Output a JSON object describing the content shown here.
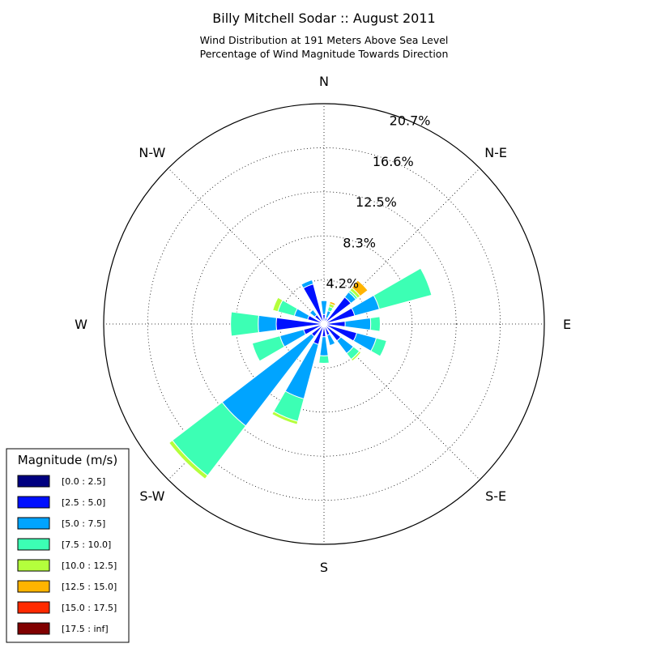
{
  "chart_data": {
    "type": "windrose",
    "title": "Billy Mitchell Sodar :: August 2011",
    "subtitle_lines": [
      "Wind Distribution at 191 Meters Above Sea Level",
      "Percentage of Wind Magnitude Towards Direction"
    ],
    "direction_labels": [
      "N",
      "N-E",
      "E",
      "S-E",
      "S",
      "S-W",
      "W",
      "N-W"
    ],
    "ring_labels": [
      "4.2%",
      "8.3%",
      "12.5%",
      "16.6%",
      "20.7%"
    ],
    "ring_values": [
      4.15,
      8.3,
      12.45,
      16.6,
      20.75
    ],
    "grid": true,
    "legend": {
      "title": "Magnitude (m/s)",
      "placement": "bottom-left",
      "bins": [
        {
          "label": "[0.0 : 2.5]",
          "color": "#000080"
        },
        {
          "label": "[2.5 : 5.0]",
          "color": "#0010ff"
        },
        {
          "label": "[5.0 : 7.5]",
          "color": "#00a4ff"
        },
        {
          "label": "[7.5 : 10.0]",
          "color": "#3cffb4"
        },
        {
          "label": "[10.0 : 12.5]",
          "color": "#b4ff3c"
        },
        {
          "label": "[12.5 : 15.0]",
          "color": "#ffb400"
        },
        {
          "label": "[15.0 : 17.5]",
          "color": "#ff2a00"
        },
        {
          "label": "[17.5 : inf]",
          "color": "#800000"
        }
      ]
    },
    "directions_deg": [
      0,
      22.5,
      45,
      67.5,
      90,
      112.5,
      135,
      157.5,
      180,
      202.5,
      225,
      247.5,
      270,
      292.5,
      315,
      337.5
    ],
    "sectors": [
      {
        "dir": 0,
        "cumulative": [
          0.1,
          0.9,
          2.2
        ]
      },
      {
        "dir": 22.5,
        "cumulative": [
          0.1,
          0.6,
          1.3,
          1.7,
          2.0,
          2.2
        ]
      },
      {
        "dir": 45,
        "cumulative": [
          0.1,
          3.2,
          3.8,
          4.0,
          4.3,
          5.2
        ]
      },
      {
        "dir": 67.5,
        "cumulative": [
          0.1,
          3.0,
          5.4,
          10.5
        ]
      },
      {
        "dir": 90,
        "cumulative": [
          0.2,
          2.0,
          4.4,
          5.3
        ]
      },
      {
        "dir": 112.5,
        "cumulative": [
          0.2,
          3.2,
          5.1,
          6.1
        ]
      },
      {
        "dir": 135,
        "cumulative": [
          0.1,
          2.0,
          3.5,
          4.2,
          4.4
        ]
      },
      {
        "dir": 157.5,
        "cumulative": [
          0.1,
          1.1,
          2.1
        ]
      },
      {
        "dir": 180,
        "cumulative": [
          0.1,
          1.2,
          3.0,
          3.7
        ]
      },
      {
        "dir": 202.5,
        "cumulative": [
          0.3,
          2.0,
          7.3,
          9.5,
          9.8
        ]
      },
      {
        "dir": 225,
        "cumulative": [
          0.3,
          1.5,
          12.1,
          18.0,
          18.4
        ]
      },
      {
        "dir": 247.5,
        "cumulative": [
          0.3,
          2.0,
          4.3,
          7.0
        ]
      },
      {
        "dir": 270,
        "cumulative": [
          0.3,
          4.5,
          6.2,
          8.8
        ]
      },
      {
        "dir": 292.5,
        "cumulative": [
          0.2,
          1.6,
          2.9,
          4.5,
          5.0
        ]
      },
      {
        "dir": 315,
        "cumulative": [
          0.2,
          1.1,
          1.7
        ]
      },
      {
        "dir": 337.5,
        "cumulative": [
          0.2,
          3.9,
          4.3
        ]
      }
    ]
  }
}
